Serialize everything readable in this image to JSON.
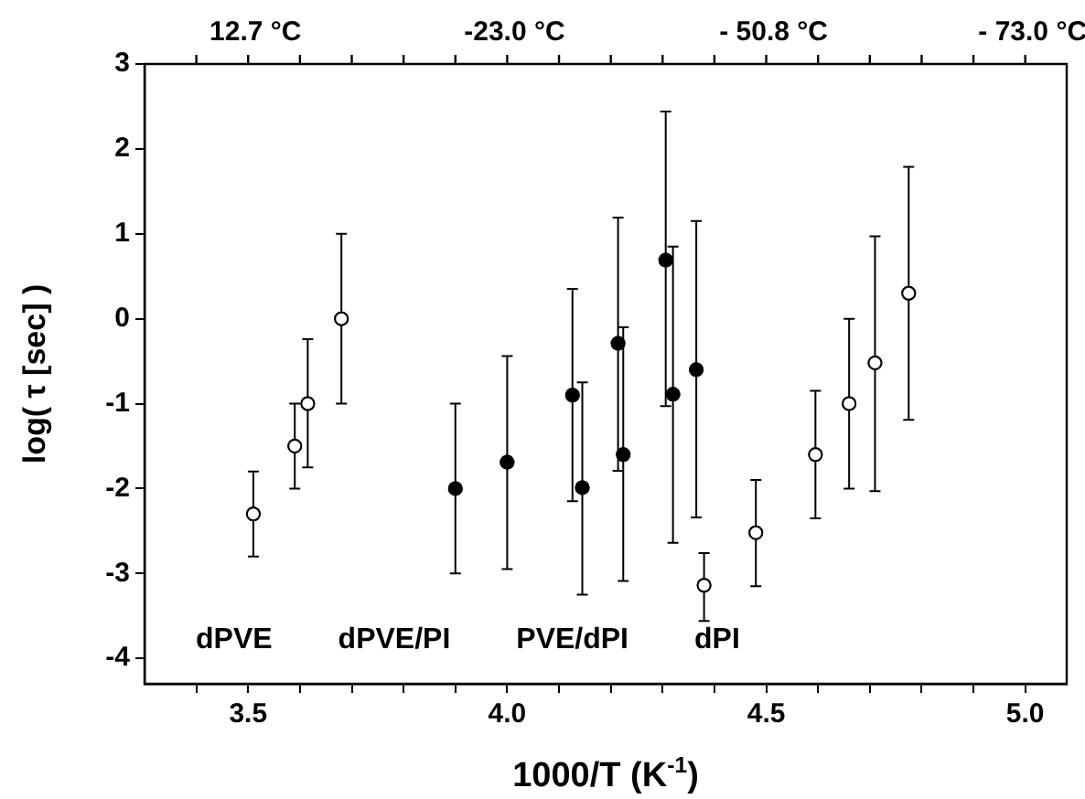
{
  "chart_data": {
    "type": "scatter",
    "xlabel": "1000/T (K$^{-1}$)",
    "ylabel": "log( τ [sec] )",
    "xlim": [
      3.3,
      5.08
    ],
    "ylim": [
      -4.3,
      3
    ],
    "xticks": [
      {
        "value": 3.4,
        "label": null
      },
      3.5,
      {
        "value": 3.6,
        "label": null
      },
      {
        "value": 3.7,
        "label": null
      },
      {
        "value": 3.8,
        "label": null
      },
      {
        "value": 3.9,
        "label": null
      },
      {
        "value": 4,
        "label": "4.0"
      },
      {
        "value": 4.1,
        "label": null
      },
      {
        "value": 4.2,
        "label": null
      },
      {
        "value": 4.3,
        "label": null
      },
      {
        "value": 4.4,
        "label": null
      },
      4.5,
      {
        "value": 4.6,
        "label": null
      },
      {
        "value": 4.7,
        "label": null
      },
      {
        "value": 4.8,
        "label": null
      },
      {
        "value": 4.9,
        "label": null
      },
      {
        "value": 5,
        "label": "5.0"
      }
    ],
    "yticks": [
      -4,
      -3,
      -2,
      -1,
      0,
      1,
      2,
      3
    ],
    "grid": false,
    "legend": false,
    "marker": "circle",
    "series": [
      {
        "color": "#ffffff",
        "x": [
          3.51,
          3.59,
          3.615,
          3.68,
          4.38,
          4.48,
          4.595,
          4.66,
          4.71,
          4.775
        ],
        "values": [
          -2.3,
          -1.5,
          -1.0,
          0,
          -3.14,
          -2.52,
          -1.6,
          -1.0,
          -0.52,
          0.3
        ],
        "errors": [
          [
            -2.8,
            -1.8
          ],
          [
            -2.0,
            -1.0
          ],
          [
            -1.75,
            -0.24
          ],
          [
            -1.0,
            1.0
          ],
          [
            -3.56,
            -2.76
          ],
          [
            -3.15,
            -1.9
          ],
          [
            -2.35,
            -0.85
          ],
          [
            -2.0,
            0
          ],
          [
            -2.03,
            0.97
          ],
          [
            -1.19,
            1.79
          ]
        ]
      },
      {
        "color": "#000000",
        "x": [
          3.9,
          4.0,
          4.126,
          4.145,
          4.214,
          4.224,
          4.306,
          4.32,
          4.365
        ],
        "values": [
          -2.0,
          -1.69,
          -0.9,
          -1.99,
          -0.29,
          -1.6,
          0.69,
          -0.89,
          -0.6
        ],
        "errors": [
          [
            -3.0,
            -1.0
          ],
          [
            -2.95,
            -0.44
          ],
          [
            -2.15,
            0.35
          ],
          [
            -3.25,
            -0.75
          ],
          [
            -1.79,
            1.19
          ],
          [
            -3.09,
            -0.1
          ],
          [
            -1.03,
            2.44
          ],
          [
            -2.64,
            0.85
          ],
          [
            -2.34,
            1.15
          ]
        ]
      }
    ],
    "annotations": [
      "12.7 °C",
      "-23.0 °C",
      "- 50.8 °C",
      "- 73.0 °C",
      "dPVE",
      "dPVE/PI",
      "PVE/dPI",
      "dPI"
    ]
  }
}
